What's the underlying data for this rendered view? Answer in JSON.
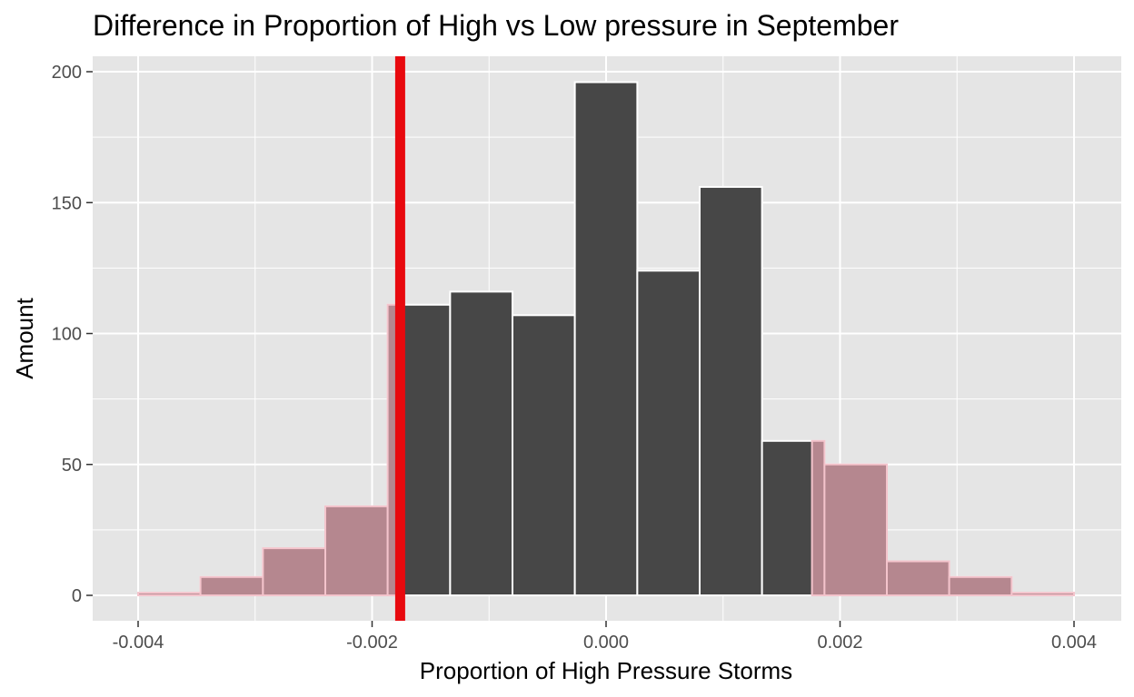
{
  "chart_data": {
    "type": "bar",
    "title": "Difference in Proportion of High vs Low pressure in September",
    "xlabel": "Proportion of High Pressure Storms",
    "ylabel": "Amount",
    "xlim": [
      -0.004,
      0.004
    ],
    "ylim": [
      0,
      200
    ],
    "x_ticks": [
      -0.004,
      -0.002,
      0.0,
      0.002,
      0.004
    ],
    "x_tick_labels": [
      "-0.004",
      "-0.002",
      "0.000",
      "0.002",
      "0.004"
    ],
    "y_ticks": [
      0,
      50,
      100,
      150,
      200
    ],
    "y_tick_labels": [
      "0",
      "50",
      "100",
      "150",
      "200"
    ],
    "grid": true,
    "bin_width": 0.000533,
    "bins": [
      {
        "x0": -0.004,
        "x1": -0.003467,
        "value": 1,
        "shaded": true
      },
      {
        "x0": -0.003467,
        "x1": -0.002933,
        "value": 7,
        "shaded": true
      },
      {
        "x0": -0.002933,
        "x1": -0.0024,
        "value": 18,
        "shaded": true
      },
      {
        "x0": -0.0024,
        "x1": -0.001867,
        "value": 34,
        "shaded": true
      },
      {
        "x0": -0.001867,
        "x1": -0.001333,
        "value": 111,
        "shaded": "partial"
      },
      {
        "x0": -0.001333,
        "x1": -0.0008,
        "value": 116,
        "shaded": false
      },
      {
        "x0": -0.0008,
        "x1": -0.000267,
        "value": 107,
        "shaded": false
      },
      {
        "x0": -0.000267,
        "x1": 0.000267,
        "value": 196,
        "shaded": false
      },
      {
        "x0": 0.000267,
        "x1": 0.0008,
        "value": 124,
        "shaded": false
      },
      {
        "x0": 0.0008,
        "x1": 0.001333,
        "value": 156,
        "shaded": false
      },
      {
        "x0": 0.001333,
        "x1": 0.001867,
        "value": 59,
        "shaded": "partial"
      },
      {
        "x0": 0.001867,
        "x1": 0.0024,
        "value": 50,
        "shaded": true
      },
      {
        "x0": 0.0024,
        "x1": 0.002933,
        "value": 13,
        "shaded": true
      },
      {
        "x0": 0.002933,
        "x1": 0.003467,
        "value": 7,
        "shaded": true
      },
      {
        "x0": 0.003467,
        "x1": 0.004,
        "value": 1,
        "shaded": true
      }
    ],
    "observed_value": -0.00176,
    "shade_direction": "both",
    "colors": {
      "panel_background": "#e5e5e5",
      "grid": "#ffffff",
      "bar_fill": "#474747",
      "bar_outline": "#ffffff",
      "shade_fill": "#b5878f",
      "shade_outline": "#f4c4cc",
      "observed_line": "#e8090e",
      "text": "#000000",
      "tick_text": "#4d4d4d"
    }
  }
}
